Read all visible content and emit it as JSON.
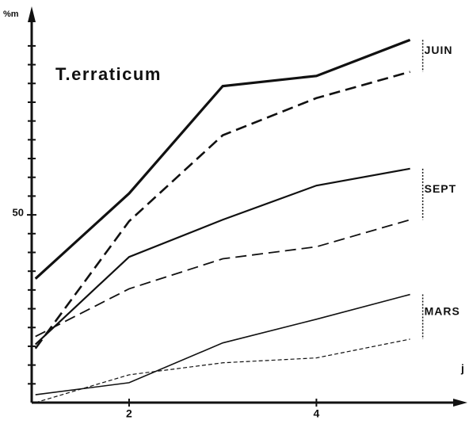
{
  "chart_data": {
    "type": "line",
    "title": "T.erraticum",
    "ylabel": "%m",
    "xlabel": "j",
    "x": [
      1,
      2,
      3,
      4,
      5
    ],
    "xlim": [
      0.96,
      5.57
    ],
    "xticks": [
      2,
      4
    ],
    "ylim": [
      0,
      103
    ],
    "yticks": [
      50
    ],
    "yminor_ticks": [
      5,
      10,
      15,
      20,
      25,
      30,
      35,
      40,
      45,
      55,
      60,
      65,
      70,
      75,
      80,
      85,
      90,
      95
    ],
    "color": "#111111",
    "series": [
      {
        "group": 0,
        "dash": "solid",
        "width": 3.2,
        "values": [
          33,
          55.7,
          84.3,
          87,
          96.6
        ]
      },
      {
        "group": 0,
        "dash": "dashed",
        "width": 2.6,
        "values": [
          14.4,
          48.3,
          71.2,
          81.1,
          88.1
        ]
      },
      {
        "group": 1,
        "dash": "solid",
        "width": 2.2,
        "values": [
          15.5,
          38.8,
          48.7,
          57.8,
          62.3
        ]
      },
      {
        "group": 1,
        "dash": "dashed",
        "width": 1.8,
        "values": [
          17.6,
          30.3,
          38.3,
          41.5,
          48.7
        ]
      },
      {
        "group": 2,
        "dash": "solid",
        "width": 1.6,
        "values": [
          2.1,
          5.3,
          15.9,
          22.2,
          28.8
        ]
      },
      {
        "group": 2,
        "dash": "dotted",
        "width": 1.2,
        "values": [
          0,
          7.4,
          10.6,
          11.9,
          16.9
        ]
      }
    ],
    "groups": [
      "JUIN",
      "SEPT",
      "MARS"
    ]
  }
}
